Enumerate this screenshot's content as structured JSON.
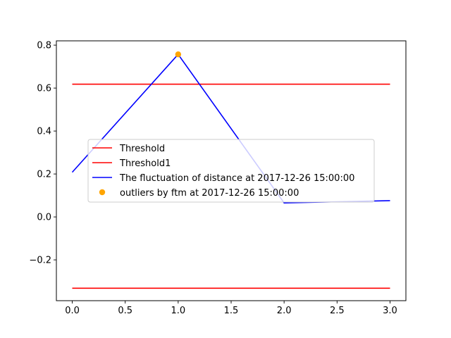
{
  "chart_data": {
    "type": "line",
    "title": "",
    "xlabel": "",
    "ylabel": "",
    "xlim": [
      -0.15,
      3.15
    ],
    "ylim": [
      -0.39,
      0.82
    ],
    "xticks": [
      0.0,
      0.5,
      1.0,
      1.5,
      2.0,
      2.5,
      3.0
    ],
    "xtick_labels": [
      "0.0",
      "0.5",
      "1.0",
      "1.5",
      "2.0",
      "2.5",
      "3.0"
    ],
    "yticks": [
      -0.2,
      0.0,
      0.2,
      0.4,
      0.6,
      0.8
    ],
    "ytick_labels": [
      "−0.2",
      "0.0",
      "0.2",
      "0.4",
      "0.6",
      "0.8"
    ],
    "grid": false,
    "legend_position": "center-left",
    "series": [
      {
        "name": "Threshold",
        "kind": "line",
        "color": "#ff0000",
        "x": [
          0,
          1,
          2,
          3
        ],
        "y": [
          0.618,
          0.618,
          0.618,
          0.618
        ]
      },
      {
        "name": "Threshold1",
        "kind": "line",
        "color": "#ff0000",
        "x": [
          0,
          1,
          2,
          3
        ],
        "y": [
          -0.332,
          -0.332,
          -0.332,
          -0.332
        ]
      },
      {
        "name": "The fluctuation of distance at 2017-12-26 15:00:00",
        "kind": "line",
        "color": "#0000ff",
        "x": [
          0,
          1,
          2,
          3
        ],
        "y": [
          0.208,
          0.757,
          0.065,
          0.076
        ]
      },
      {
        "name": "outliers by ftm at 2017-12-26 15:00:00",
        "kind": "scatter",
        "color": "#ffa500",
        "x": [
          1
        ],
        "y": [
          0.757
        ]
      }
    ]
  }
}
